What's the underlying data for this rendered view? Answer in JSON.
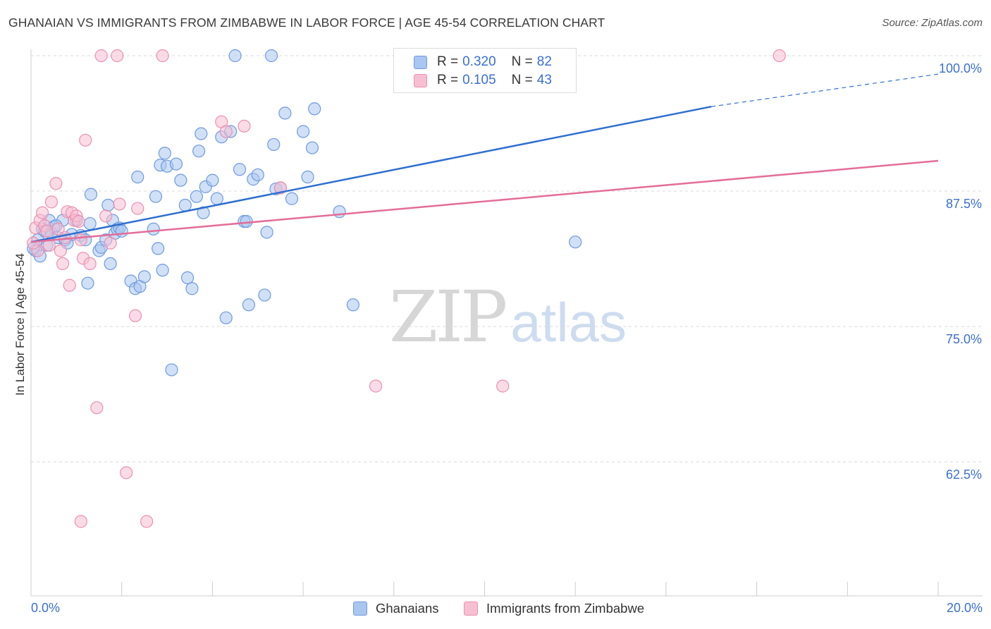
{
  "title": "GHANAIAN VS IMMIGRANTS FROM ZIMBABWE IN LABOR FORCE | AGE 45-54 CORRELATION CHART",
  "source": "Source: ZipAtlas.com",
  "watermark": {
    "zip": "ZIP",
    "atlas": "atlas"
  },
  "legend": {
    "r_label": "R =",
    "n_label": "N =",
    "series": [
      {
        "r": "0.320",
        "n": "82"
      },
      {
        "r": "0.105",
        "n": "43"
      }
    ]
  },
  "colors": {
    "blue_fill": "#a9c6f0",
    "blue_stroke": "#6f9ae0",
    "blue_line": "#2f6fd0",
    "pink_fill": "#f7bfd2",
    "pink_stroke": "#ec8fb0",
    "pink_line": "#e46d98",
    "grid": "#d9d9d9",
    "tick_label": "#3b6fd1"
  },
  "chart_data": {
    "type": "scatter",
    "title": "GHANAIAN VS IMMIGRANTS FROM ZIMBABWE IN LABOR FORCE | AGE 45-54 CORRELATION CHART",
    "xlabel": "",
    "ylabel": "In Labor Force | Age 45-54",
    "xlim": [
      0,
      20
    ],
    "ylim": [
      50,
      101
    ],
    "x_tick_labels": [
      "0.0%",
      "20.0%"
    ],
    "y_ticks": [
      {
        "value": 100,
        "label": "100.0%"
      },
      {
        "value": 87.5,
        "label": "87.5%"
      },
      {
        "value": 75,
        "label": "75.0%"
      },
      {
        "value": 62.5,
        "label": "62.5%"
      }
    ],
    "series": [
      {
        "name": "Ghanaians",
        "r": 0.32,
        "n": 82,
        "trend": {
          "x0": 0,
          "y0": 82.8,
          "x1": 15.0,
          "y1": 95.3,
          "dash_to_x": 20.0,
          "dash_to_y": 98.3
        },
        "points": [
          [
            0.1,
            82.0
          ],
          [
            0.15,
            83.0
          ],
          [
            0.2,
            81.5
          ],
          [
            0.25,
            84.0
          ],
          [
            0.3,
            83.8
          ],
          [
            0.35,
            82.5
          ],
          [
            0.4,
            84.8
          ],
          [
            0.5,
            84.2
          ],
          [
            0.6,
            83.2
          ],
          [
            0.7,
            84.8
          ],
          [
            0.75,
            83.0
          ],
          [
            0.8,
            82.7
          ],
          [
            0.9,
            83.5
          ],
          [
            1.0,
            84.8
          ],
          [
            1.1,
            83.4
          ],
          [
            1.2,
            83.0
          ],
          [
            1.25,
            79.0
          ],
          [
            1.3,
            84.5
          ],
          [
            1.32,
            87.2
          ],
          [
            1.5,
            82.0
          ],
          [
            1.55,
            82.3
          ],
          [
            1.65,
            83.0
          ],
          [
            1.7,
            86.2
          ],
          [
            1.75,
            80.8
          ],
          [
            1.8,
            84.8
          ],
          [
            1.85,
            83.6
          ],
          [
            1.9,
            84.0
          ],
          [
            1.95,
            84.1
          ],
          [
            2.0,
            83.8
          ],
          [
            2.2,
            79.2
          ],
          [
            2.3,
            78.5
          ],
          [
            2.35,
            88.8
          ],
          [
            2.4,
            78.7
          ],
          [
            2.5,
            79.6
          ],
          [
            2.7,
            84.0
          ],
          [
            2.75,
            87.0
          ],
          [
            2.8,
            82.2
          ],
          [
            2.85,
            89.9
          ],
          [
            2.9,
            80.2
          ],
          [
            2.95,
            91.0
          ],
          [
            3.0,
            89.8
          ],
          [
            3.1,
            71.0
          ],
          [
            3.2,
            90.0
          ],
          [
            3.3,
            88.5
          ],
          [
            3.4,
            86.2
          ],
          [
            3.45,
            79.5
          ],
          [
            3.55,
            78.5
          ],
          [
            3.65,
            87.0
          ],
          [
            3.7,
            91.2
          ],
          [
            3.75,
            92.8
          ],
          [
            3.8,
            85.5
          ],
          [
            3.85,
            87.9
          ],
          [
            4.0,
            88.5
          ],
          [
            4.1,
            86.8
          ],
          [
            4.2,
            92.5
          ],
          [
            4.3,
            75.8
          ],
          [
            4.4,
            93.0
          ],
          [
            4.5,
            100.0
          ],
          [
            4.6,
            89.5
          ],
          [
            4.7,
            84.7
          ],
          [
            4.75,
            84.7
          ],
          [
            4.8,
            77.0
          ],
          [
            4.9,
            88.6
          ],
          [
            5.0,
            89.0
          ],
          [
            5.15,
            77.9
          ],
          [
            5.2,
            83.7
          ],
          [
            5.3,
            100.0
          ],
          [
            5.35,
            91.8
          ],
          [
            5.4,
            87.7
          ],
          [
            5.5,
            87.8
          ],
          [
            5.6,
            94.7
          ],
          [
            5.75,
            86.8
          ],
          [
            6.0,
            93.0
          ],
          [
            6.1,
            88.8
          ],
          [
            6.2,
            91.5
          ],
          [
            6.25,
            95.1
          ],
          [
            6.8,
            85.6
          ],
          [
            7.1,
            77.0
          ],
          [
            12.0,
            82.8
          ],
          [
            0.05,
            82.2
          ],
          [
            0.45,
            83.6
          ],
          [
            0.55,
            84.3
          ]
        ]
      },
      {
        "name": "Immigrants from Zimbabwe",
        "r": 0.105,
        "n": 43,
        "trend": {
          "x0": 0,
          "y0": 82.8,
          "x1": 20.0,
          "y1": 90.3
        },
        "points": [
          [
            0.1,
            84.1
          ],
          [
            0.15,
            82.0
          ],
          [
            0.2,
            84.8
          ],
          [
            0.25,
            85.5
          ],
          [
            0.3,
            84.3
          ],
          [
            0.35,
            83.8
          ],
          [
            0.4,
            82.5
          ],
          [
            0.45,
            86.5
          ],
          [
            0.55,
            88.2
          ],
          [
            0.6,
            84.0
          ],
          [
            0.65,
            82.0
          ],
          [
            0.7,
            80.8
          ],
          [
            0.75,
            83.2
          ],
          [
            0.8,
            85.6
          ],
          [
            0.85,
            78.8
          ],
          [
            0.9,
            85.5
          ],
          [
            0.95,
            84.8
          ],
          [
            1.0,
            85.2
          ],
          [
            1.05,
            84.7
          ],
          [
            1.1,
            83.0
          ],
          [
            1.15,
            81.3
          ],
          [
            1.2,
            92.2
          ],
          [
            1.3,
            80.8
          ],
          [
            1.45,
            67.5
          ],
          [
            1.55,
            100.0
          ],
          [
            1.65,
            85.2
          ],
          [
            1.75,
            82.7
          ],
          [
            1.9,
            100.0
          ],
          [
            1.95,
            86.3
          ],
          [
            2.1,
            61.5
          ],
          [
            2.3,
            76.0
          ],
          [
            2.35,
            85.9
          ],
          [
            2.55,
            57.0
          ],
          [
            2.9,
            100.0
          ],
          [
            4.2,
            93.9
          ],
          [
            4.3,
            93.0
          ],
          [
            4.7,
            93.5
          ],
          [
            5.5,
            87.8
          ],
          [
            7.6,
            69.5
          ],
          [
            10.4,
            69.5
          ],
          [
            16.5,
            100.0
          ],
          [
            1.1,
            57.0
          ],
          [
            0.05,
            82.7
          ]
        ]
      }
    ]
  }
}
